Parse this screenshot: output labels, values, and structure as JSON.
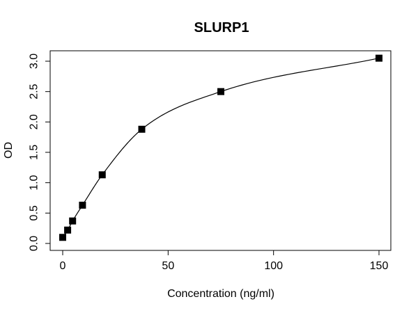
{
  "chart_data": {
    "type": "scatter",
    "title": "SLURP1",
    "xlabel": "Concentration (ng/ml)",
    "ylabel": "OD",
    "xlim": [
      0,
      150
    ],
    "ylim": [
      0,
      3.0
    ],
    "x_ticks": [
      0,
      50,
      100,
      150
    ],
    "x_tick_labels": [
      "0",
      "50",
      "100",
      "150"
    ],
    "y_ticks": [
      0,
      0.5,
      1.0,
      1.5,
      2.0,
      2.5,
      3.0
    ],
    "y_tick_labels": [
      "0.0",
      "0.5",
      "1.0",
      "1.5",
      "2.0",
      "2.5",
      "3.0"
    ],
    "grid": false,
    "legend": "none",
    "series": [
      {
        "x": [
          0,
          2.34,
          4.69,
          9.38,
          18.75,
          37.5,
          75,
          150
        ],
        "y": [
          0.1,
          0.22,
          0.37,
          0.63,
          1.13,
          1.88,
          2.5,
          3.05
        ],
        "marker": "square",
        "fit_curve": true
      }
    ],
    "colors": {
      "marker": "#000000",
      "curve": "#000000"
    }
  }
}
